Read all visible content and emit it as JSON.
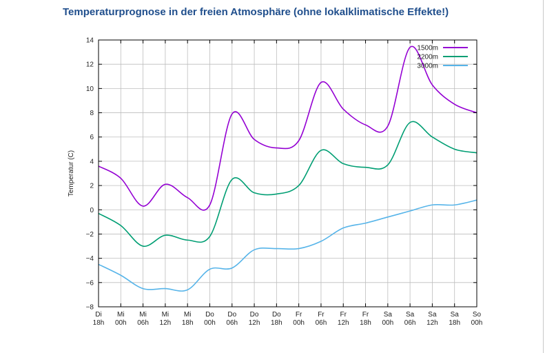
{
  "page": {
    "title": "Temperaturprognose in der freien Atmosphäre (ohne lokalklimatische Effekte!)"
  },
  "chart_data": {
    "type": "line",
    "ylabel": "Temperatur (C)",
    "ylim": [
      -8,
      14
    ],
    "yticks": [
      -8,
      -6,
      -4,
      -2,
      0,
      2,
      4,
      6,
      8,
      10,
      12,
      14
    ],
    "ytick_labels": [
      "−8",
      "−6",
      "−4",
      "−2",
      "0",
      "2",
      "4",
      "6",
      "8",
      "10",
      "12",
      "14"
    ],
    "grid": true,
    "legend_position": "top-right",
    "x_labels": [
      {
        "day": "Di",
        "hour": "18h"
      },
      {
        "day": "Mi",
        "hour": "00h"
      },
      {
        "day": "Mi",
        "hour": "06h"
      },
      {
        "day": "Mi",
        "hour": "12h"
      },
      {
        "day": "Mi",
        "hour": "18h"
      },
      {
        "day": "Do",
        "hour": "00h"
      },
      {
        "day": "Do",
        "hour": "06h"
      },
      {
        "day": "Do",
        "hour": "12h"
      },
      {
        "day": "Do",
        "hour": "18h"
      },
      {
        "day": "Fr",
        "hour": "00h"
      },
      {
        "day": "Fr",
        "hour": "06h"
      },
      {
        "day": "Fr",
        "hour": "12h"
      },
      {
        "day": "Fr",
        "hour": "18h"
      },
      {
        "day": "Sa",
        "hour": "00h"
      },
      {
        "day": "Sa",
        "hour": "06h"
      },
      {
        "day": "Sa",
        "hour": "12h"
      },
      {
        "day": "Sa",
        "hour": "18h"
      },
      {
        "day": "So",
        "hour": "00h"
      }
    ],
    "series": [
      {
        "name": "1500m",
        "color": "#9400d3",
        "values": [
          3.6,
          2.6,
          0.3,
          2.1,
          1.0,
          0.4,
          7.9,
          5.8,
          5.1,
          5.7,
          10.5,
          8.3,
          7.0,
          6.9,
          13.4,
          10.3,
          8.7,
          8.0
        ]
      },
      {
        "name": "2200m",
        "color": "#009e73",
        "values": [
          -0.3,
          -1.3,
          -3.0,
          -2.1,
          -2.5,
          -2.2,
          2.5,
          1.4,
          1.3,
          2.0,
          4.9,
          3.8,
          3.5,
          3.7,
          7.2,
          6.0,
          5.0,
          4.7
        ]
      },
      {
        "name": "3000m",
        "color": "#56b4e9",
        "values": [
          -4.5,
          -5.4,
          -6.5,
          -6.5,
          -6.6,
          -4.9,
          -4.8,
          -3.3,
          -3.2,
          -3.2,
          -2.6,
          -1.5,
          -1.1,
          -0.6,
          -0.1,
          0.4,
          0.4,
          0.8
        ]
      }
    ]
  }
}
